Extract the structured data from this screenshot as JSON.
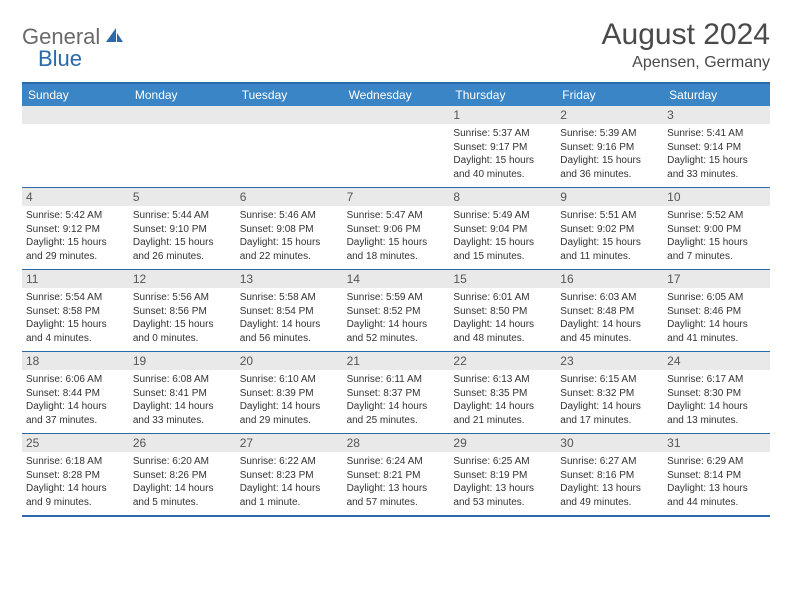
{
  "logo": {
    "part1": "General",
    "part2": "Blue"
  },
  "title": "August 2024",
  "location": "Apensen, Germany",
  "colors": {
    "header_bg": "#3a85c6",
    "border": "#2b6aa8",
    "daynum_bg": "#e9e9e9",
    "logo_gray": "#6a6a6a",
    "logo_blue": "#2b6aa8"
  },
  "day_headers": [
    "Sunday",
    "Monday",
    "Tuesday",
    "Wednesday",
    "Thursday",
    "Friday",
    "Saturday"
  ],
  "weeks": [
    [
      {
        "empty": true
      },
      {
        "empty": true
      },
      {
        "empty": true
      },
      {
        "empty": true
      },
      {
        "day": "1",
        "sunrise": "Sunrise: 5:37 AM",
        "sunset": "Sunset: 9:17 PM",
        "daylight": "Daylight: 15 hours and 40 minutes."
      },
      {
        "day": "2",
        "sunrise": "Sunrise: 5:39 AM",
        "sunset": "Sunset: 9:16 PM",
        "daylight": "Daylight: 15 hours and 36 minutes."
      },
      {
        "day": "3",
        "sunrise": "Sunrise: 5:41 AM",
        "sunset": "Sunset: 9:14 PM",
        "daylight": "Daylight: 15 hours and 33 minutes."
      }
    ],
    [
      {
        "day": "4",
        "sunrise": "Sunrise: 5:42 AM",
        "sunset": "Sunset: 9:12 PM",
        "daylight": "Daylight: 15 hours and 29 minutes."
      },
      {
        "day": "5",
        "sunrise": "Sunrise: 5:44 AM",
        "sunset": "Sunset: 9:10 PM",
        "daylight": "Daylight: 15 hours and 26 minutes."
      },
      {
        "day": "6",
        "sunrise": "Sunrise: 5:46 AM",
        "sunset": "Sunset: 9:08 PM",
        "daylight": "Daylight: 15 hours and 22 minutes."
      },
      {
        "day": "7",
        "sunrise": "Sunrise: 5:47 AM",
        "sunset": "Sunset: 9:06 PM",
        "daylight": "Daylight: 15 hours and 18 minutes."
      },
      {
        "day": "8",
        "sunrise": "Sunrise: 5:49 AM",
        "sunset": "Sunset: 9:04 PM",
        "daylight": "Daylight: 15 hours and 15 minutes."
      },
      {
        "day": "9",
        "sunrise": "Sunrise: 5:51 AM",
        "sunset": "Sunset: 9:02 PM",
        "daylight": "Daylight: 15 hours and 11 minutes."
      },
      {
        "day": "10",
        "sunrise": "Sunrise: 5:52 AM",
        "sunset": "Sunset: 9:00 PM",
        "daylight": "Daylight: 15 hours and 7 minutes."
      }
    ],
    [
      {
        "day": "11",
        "sunrise": "Sunrise: 5:54 AM",
        "sunset": "Sunset: 8:58 PM",
        "daylight": "Daylight: 15 hours and 4 minutes."
      },
      {
        "day": "12",
        "sunrise": "Sunrise: 5:56 AM",
        "sunset": "Sunset: 8:56 PM",
        "daylight": "Daylight: 15 hours and 0 minutes."
      },
      {
        "day": "13",
        "sunrise": "Sunrise: 5:58 AM",
        "sunset": "Sunset: 8:54 PM",
        "daylight": "Daylight: 14 hours and 56 minutes."
      },
      {
        "day": "14",
        "sunrise": "Sunrise: 5:59 AM",
        "sunset": "Sunset: 8:52 PM",
        "daylight": "Daylight: 14 hours and 52 minutes."
      },
      {
        "day": "15",
        "sunrise": "Sunrise: 6:01 AM",
        "sunset": "Sunset: 8:50 PM",
        "daylight": "Daylight: 14 hours and 48 minutes."
      },
      {
        "day": "16",
        "sunrise": "Sunrise: 6:03 AM",
        "sunset": "Sunset: 8:48 PM",
        "daylight": "Daylight: 14 hours and 45 minutes."
      },
      {
        "day": "17",
        "sunrise": "Sunrise: 6:05 AM",
        "sunset": "Sunset: 8:46 PM",
        "daylight": "Daylight: 14 hours and 41 minutes."
      }
    ],
    [
      {
        "day": "18",
        "sunrise": "Sunrise: 6:06 AM",
        "sunset": "Sunset: 8:44 PM",
        "daylight": "Daylight: 14 hours and 37 minutes."
      },
      {
        "day": "19",
        "sunrise": "Sunrise: 6:08 AM",
        "sunset": "Sunset: 8:41 PM",
        "daylight": "Daylight: 14 hours and 33 minutes."
      },
      {
        "day": "20",
        "sunrise": "Sunrise: 6:10 AM",
        "sunset": "Sunset: 8:39 PM",
        "daylight": "Daylight: 14 hours and 29 minutes."
      },
      {
        "day": "21",
        "sunrise": "Sunrise: 6:11 AM",
        "sunset": "Sunset: 8:37 PM",
        "daylight": "Daylight: 14 hours and 25 minutes."
      },
      {
        "day": "22",
        "sunrise": "Sunrise: 6:13 AM",
        "sunset": "Sunset: 8:35 PM",
        "daylight": "Daylight: 14 hours and 21 minutes."
      },
      {
        "day": "23",
        "sunrise": "Sunrise: 6:15 AM",
        "sunset": "Sunset: 8:32 PM",
        "daylight": "Daylight: 14 hours and 17 minutes."
      },
      {
        "day": "24",
        "sunrise": "Sunrise: 6:17 AM",
        "sunset": "Sunset: 8:30 PM",
        "daylight": "Daylight: 14 hours and 13 minutes."
      }
    ],
    [
      {
        "day": "25",
        "sunrise": "Sunrise: 6:18 AM",
        "sunset": "Sunset: 8:28 PM",
        "daylight": "Daylight: 14 hours and 9 minutes."
      },
      {
        "day": "26",
        "sunrise": "Sunrise: 6:20 AM",
        "sunset": "Sunset: 8:26 PM",
        "daylight": "Daylight: 14 hours and 5 minutes."
      },
      {
        "day": "27",
        "sunrise": "Sunrise: 6:22 AM",
        "sunset": "Sunset: 8:23 PM",
        "daylight": "Daylight: 14 hours and 1 minute."
      },
      {
        "day": "28",
        "sunrise": "Sunrise: 6:24 AM",
        "sunset": "Sunset: 8:21 PM",
        "daylight": "Daylight: 13 hours and 57 minutes."
      },
      {
        "day": "29",
        "sunrise": "Sunrise: 6:25 AM",
        "sunset": "Sunset: 8:19 PM",
        "daylight": "Daylight: 13 hours and 53 minutes."
      },
      {
        "day": "30",
        "sunrise": "Sunrise: 6:27 AM",
        "sunset": "Sunset: 8:16 PM",
        "daylight": "Daylight: 13 hours and 49 minutes."
      },
      {
        "day": "31",
        "sunrise": "Sunrise: 6:29 AM",
        "sunset": "Sunset: 8:14 PM",
        "daylight": "Daylight: 13 hours and 44 minutes."
      }
    ]
  ]
}
